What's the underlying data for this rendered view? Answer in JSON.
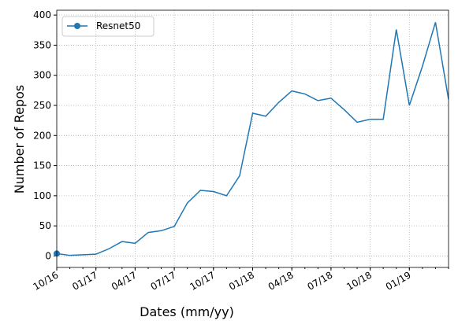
{
  "chart_data": {
    "type": "line",
    "x_label": "Dates (mm/yy)",
    "y_label": "Number of Repos",
    "x": [
      "10/16",
      "11/16",
      "12/16",
      "01/17",
      "02/17",
      "03/17",
      "04/17",
      "05/17",
      "06/17",
      "07/17",
      "08/17",
      "09/17",
      "10/17",
      "11/17",
      "12/17",
      "01/18",
      "02/18",
      "03/18",
      "04/18",
      "05/18",
      "06/18",
      "07/18",
      "08/18",
      "09/18",
      "10/18",
      "11/18",
      "12/18",
      "01/19",
      "02/19",
      "03/19",
      "04/19"
    ],
    "series": [
      {
        "name": "Resnet50",
        "color": "#1f77b4",
        "values": [
          4,
          1,
          2,
          3,
          12,
          24,
          21,
          39,
          42,
          49,
          88,
          109,
          107,
          100,
          133,
          237,
          232,
          255,
          274,
          269,
          258,
          262,
          243,
          222,
          227,
          227,
          376,
          250,
          315,
          388,
          260
        ]
      }
    ],
    "xlim": [
      "10/16",
      "04/19"
    ],
    "xticks": [
      "10/16",
      "01/17",
      "04/17",
      "07/17",
      "10/17",
      "01/18",
      "04/18",
      "07/18",
      "10/18",
      "01/19"
    ],
    "ylim": [
      -19,
      408
    ],
    "yticks": [
      0,
      50,
      100,
      150,
      200,
      250,
      300,
      350,
      400
    ],
    "grid": true,
    "legend": "upper left"
  }
}
